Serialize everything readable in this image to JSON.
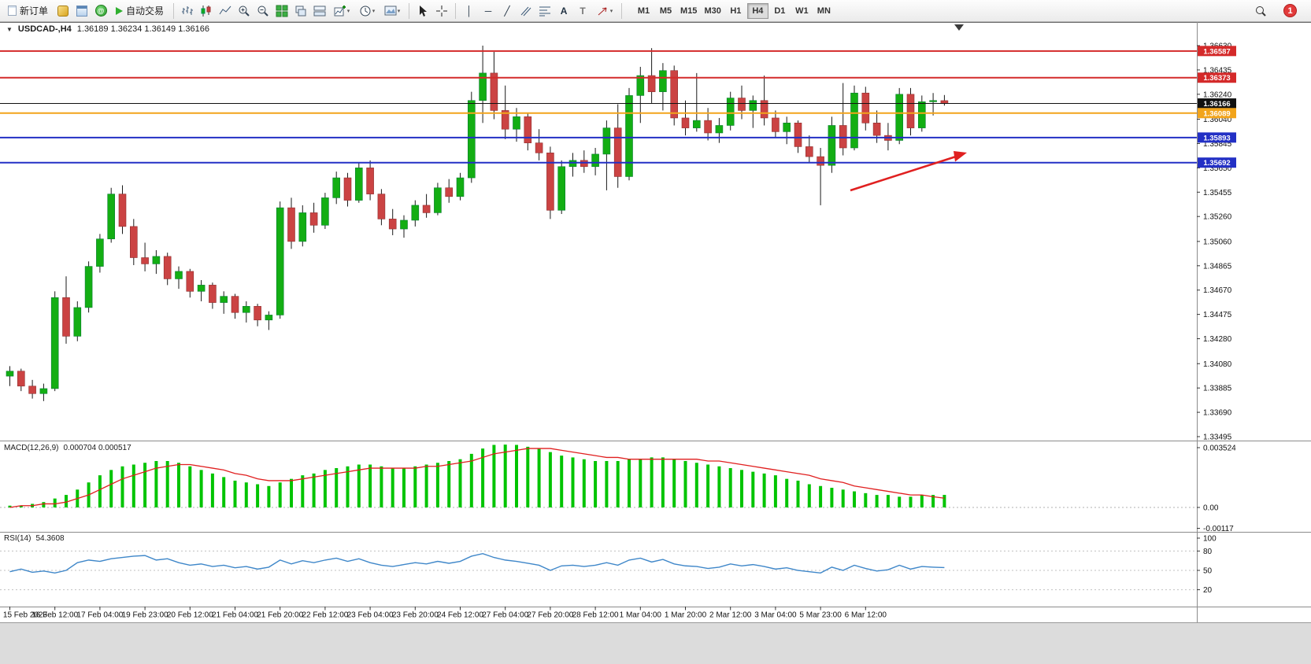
{
  "toolbar": {
    "new_order_label": "新订单",
    "auto_trading_label": "自动交易",
    "timeframes": [
      "M1",
      "M5",
      "M15",
      "M30",
      "H1",
      "H4",
      "D1",
      "W1",
      "MN"
    ],
    "active_timeframe": "H4",
    "notification_count": "1"
  },
  "chart": {
    "expander_icon": "▼",
    "symbol_header": "USDCAD-,H4",
    "ohlc_text": "1.36189 1.36234 1.36149 1.36166",
    "price_ticks": [
      "1.36630",
      "1.36435",
      "1.36240",
      "1.36040",
      "1.35845",
      "1.35650",
      "1.35455",
      "1.35260",
      "1.35060",
      "1.34865",
      "1.34670",
      "1.34475",
      "1.34280",
      "1.34080",
      "1.33885",
      "1.33690",
      "1.33495"
    ],
    "levels": [
      {
        "name": "resistance-1",
        "price": "1.36587",
        "color": "#d42a2a"
      },
      {
        "name": "resistance-2",
        "price": "1.36373",
        "color": "#d42a2a"
      },
      {
        "name": "current-price",
        "price": "1.36166",
        "color": "#111111"
      },
      {
        "name": "pivot",
        "price": "1.36089",
        "color": "#f2a41b"
      },
      {
        "name": "support-1",
        "price": "1.35893",
        "color": "#2330c5"
      },
      {
        "name": "support-2",
        "price": "1.35692",
        "color": "#2330c5"
      }
    ],
    "time_labels": [
      "15 Feb 2023",
      "16 Feb 12:00",
      "17 Feb 04:00",
      "19 Feb 23:00",
      "20 Feb 12:00",
      "21 Feb 04:00",
      "21 Feb 20:00",
      "22 Feb 12:00",
      "23 Feb 04:00",
      "23 Feb 20:00",
      "24 Feb 12:00",
      "27 Feb 04:00",
      "27 Feb 20:00",
      "28 Feb 12:00",
      "1 Mar 04:00",
      "1 Mar 20:00",
      "2 Mar 12:00",
      "3 Mar 04:00",
      "5 Mar 23:00",
      "6 Mar 12:00"
    ]
  },
  "macd": {
    "label": "MACD(12,26,9)",
    "values": "0.000704 0.000517",
    "ticks": [
      "0.003524",
      "0.00",
      "-0.00117"
    ]
  },
  "rsi": {
    "label": "RSI(14)",
    "values": "54.3608",
    "ticks": [
      "100",
      "80",
      "50",
      "20"
    ]
  },
  "chart_data": {
    "type": "candlestick",
    "symbol": "USDCAD-",
    "timeframe": "H4",
    "current": {
      "open": 1.36189,
      "high": 1.36234,
      "low": 1.36149,
      "close": 1.36166
    },
    "price_range": [
      1.33495,
      1.3663
    ],
    "colors": {
      "bull": "#13ae13",
      "bear": "#cb4343",
      "macd_hist": "#00c400",
      "macd_signal": "#e01f1f",
      "rsi": "#3f87c9",
      "arrow": "#e02020"
    },
    "candles": [
      [
        1.3398,
        1.3406,
        1.339,
        1.3402
      ],
      [
        1.3402,
        1.3404,
        1.3386,
        1.339
      ],
      [
        1.339,
        1.3395,
        1.338,
        1.3384
      ],
      [
        1.3384,
        1.3392,
        1.3378,
        1.3388
      ],
      [
        1.3388,
        1.3466,
        1.3386,
        1.3461
      ],
      [
        1.3461,
        1.3478,
        1.3424,
        1.343
      ],
      [
        1.343,
        1.3458,
        1.3426,
        1.3453
      ],
      [
        1.3453,
        1.349,
        1.3449,
        1.3486
      ],
      [
        1.3486,
        1.3512,
        1.3481,
        1.3508
      ],
      [
        1.3508,
        1.3549,
        1.3505,
        1.3544
      ],
      [
        1.3544,
        1.3551,
        1.3512,
        1.3518
      ],
      [
        1.3518,
        1.3524,
        1.3487,
        1.3493
      ],
      [
        1.3493,
        1.3505,
        1.3482,
        1.3488
      ],
      [
        1.3488,
        1.3499,
        1.348,
        1.3494
      ],
      [
        1.3494,
        1.3497,
        1.3471,
        1.3476
      ],
      [
        1.3476,
        1.3486,
        1.3468,
        1.3482
      ],
      [
        1.3482,
        1.3484,
        1.3461,
        1.3466
      ],
      [
        1.3466,
        1.3475,
        1.3458,
        1.3471
      ],
      [
        1.3471,
        1.3473,
        1.3452,
        1.3457
      ],
      [
        1.3457,
        1.3466,
        1.3448,
        1.3462
      ],
      [
        1.3462,
        1.3464,
        1.3444,
        1.3449
      ],
      [
        1.3449,
        1.3458,
        1.3441,
        1.3454
      ],
      [
        1.3454,
        1.3456,
        1.3438,
        1.3443
      ],
      [
        1.3443,
        1.345,
        1.3435,
        1.3447
      ],
      [
        1.3447,
        1.3538,
        1.3444,
        1.3533
      ],
      [
        1.3533,
        1.3541,
        1.35,
        1.3506
      ],
      [
        1.3506,
        1.3535,
        1.3502,
        1.3529
      ],
      [
        1.3529,
        1.3537,
        1.3513,
        1.3519
      ],
      [
        1.3519,
        1.3545,
        1.3516,
        1.3541
      ],
      [
        1.3541,
        1.3562,
        1.3536,
        1.3557
      ],
      [
        1.3557,
        1.3561,
        1.3534,
        1.3539
      ],
      [
        1.3539,
        1.3569,
        1.3537,
        1.3565
      ],
      [
        1.3565,
        1.3571,
        1.3539,
        1.3544
      ],
      [
        1.3544,
        1.3548,
        1.3519,
        1.3524
      ],
      [
        1.3524,
        1.3532,
        1.3511,
        1.3516
      ],
      [
        1.3516,
        1.3527,
        1.3509,
        1.3523
      ],
      [
        1.3523,
        1.3539,
        1.3518,
        1.3535
      ],
      [
        1.3535,
        1.3544,
        1.3525,
        1.3529
      ],
      [
        1.3529,
        1.3553,
        1.3527,
        1.3549
      ],
      [
        1.3549,
        1.3556,
        1.3537,
        1.3542
      ],
      [
        1.3542,
        1.3561,
        1.3539,
        1.3557
      ],
      [
        1.3557,
        1.3626,
        1.3553,
        1.3619
      ],
      [
        1.3619,
        1.3663,
        1.3601,
        1.3641
      ],
      [
        1.3641,
        1.3658,
        1.3604,
        1.3611
      ],
      [
        1.3611,
        1.3631,
        1.3588,
        1.3596
      ],
      [
        1.3596,
        1.3613,
        1.3586,
        1.3606
      ],
      [
        1.3606,
        1.3609,
        1.3579,
        1.3585
      ],
      [
        1.3585,
        1.3596,
        1.3571,
        1.3577
      ],
      [
        1.3577,
        1.3582,
        1.3524,
        1.3531
      ],
      [
        1.3531,
        1.3571,
        1.3528,
        1.3566
      ],
      [
        1.3566,
        1.3577,
        1.3558,
        1.3571
      ],
      [
        1.3571,
        1.3579,
        1.3561,
        1.3566
      ],
      [
        1.3566,
        1.3581,
        1.3559,
        1.3576
      ],
      [
        1.3576,
        1.3603,
        1.3547,
        1.3597
      ],
      [
        1.3597,
        1.3616,
        1.3549,
        1.3558
      ],
      [
        1.3558,
        1.3629,
        1.3555,
        1.3623
      ],
      [
        1.3623,
        1.3646,
        1.3601,
        1.3639
      ],
      [
        1.3639,
        1.3661,
        1.3617,
        1.3626
      ],
      [
        1.3626,
        1.3649,
        1.3611,
        1.3643
      ],
      [
        1.3643,
        1.3647,
        1.3599,
        1.3605
      ],
      [
        1.3605,
        1.3619,
        1.3591,
        1.3597
      ],
      [
        1.3597,
        1.3641,
        1.3594,
        1.3603
      ],
      [
        1.3603,
        1.3613,
        1.3587,
        1.3593
      ],
      [
        1.3593,
        1.3605,
        1.3585,
        1.3599
      ],
      [
        1.3599,
        1.3626,
        1.3595,
        1.3621
      ],
      [
        1.3621,
        1.3631,
        1.3604,
        1.3611
      ],
      [
        1.3611,
        1.3623,
        1.3597,
        1.3619
      ],
      [
        1.3619,
        1.3639,
        1.3599,
        1.3605
      ],
      [
        1.3605,
        1.3611,
        1.3589,
        1.3594
      ],
      [
        1.3594,
        1.3606,
        1.3584,
        1.3601
      ],
      [
        1.3601,
        1.3603,
        1.3577,
        1.3582
      ],
      [
        1.3582,
        1.3591,
        1.3569,
        1.3574
      ],
      [
        1.3574,
        1.3581,
        1.3535,
        1.3567
      ],
      [
        1.3567,
        1.3606,
        1.3561,
        1.3599
      ],
      [
        1.3599,
        1.3633,
        1.3575,
        1.3581
      ],
      [
        1.3581,
        1.3631,
        1.3579,
        1.3625
      ],
      [
        1.3625,
        1.363,
        1.3595,
        1.3601
      ],
      [
        1.3601,
        1.3611,
        1.3585,
        1.3591
      ],
      [
        1.3591,
        1.3601,
        1.3579,
        1.3587
      ],
      [
        1.3587,
        1.3629,
        1.3584,
        1.3624
      ],
      [
        1.3624,
        1.3629,
        1.3591,
        1.3597
      ],
      [
        1.3597,
        1.3623,
        1.3594,
        1.3618
      ],
      [
        1.3618,
        1.3625,
        1.3607,
        1.3619
      ],
      [
        1.36189,
        1.36234,
        1.36149,
        1.36166
      ]
    ],
    "macd_series": {
      "histogram": [
        0.0001,
        0.0001,
        0.0002,
        0.0003,
        0.0005,
        0.0007,
        0.001,
        0.0014,
        0.0018,
        0.0021,
        0.0023,
        0.0024,
        0.0025,
        0.0026,
        0.0026,
        0.0025,
        0.0023,
        0.0021,
        0.0019,
        0.0017,
        0.0015,
        0.0014,
        0.0013,
        0.0012,
        0.0014,
        0.0016,
        0.0018,
        0.0019,
        0.0021,
        0.0022,
        0.0023,
        0.0024,
        0.0024,
        0.0023,
        0.0022,
        0.0022,
        0.0023,
        0.0024,
        0.0025,
        0.0026,
        0.0027,
        0.003,
        0.0033,
        0.0035,
        0.00352,
        0.0035,
        0.0034,
        0.0033,
        0.0031,
        0.0029,
        0.0028,
        0.0027,
        0.0026,
        0.0026,
        0.0026,
        0.0027,
        0.0027,
        0.0028,
        0.0028,
        0.0027,
        0.0026,
        0.0025,
        0.0024,
        0.0023,
        0.0022,
        0.0021,
        0.002,
        0.0019,
        0.0018,
        0.0016,
        0.0015,
        0.0013,
        0.0012,
        0.0011,
        0.001,
        0.0009,
        0.0008,
        0.0007,
        0.0007,
        0.0006,
        0.0006,
        0.0007,
        0.0007,
        0.000704
      ],
      "signal": [
        0.0,
        0.0001,
        0.0001,
        0.0002,
        0.0002,
        0.0003,
        0.0005,
        0.0007,
        0.001,
        0.0013,
        0.0016,
        0.0018,
        0.002,
        0.0022,
        0.0023,
        0.0024,
        0.0024,
        0.0023,
        0.0022,
        0.0021,
        0.0019,
        0.0018,
        0.0016,
        0.0015,
        0.0015,
        0.0015,
        0.0016,
        0.0017,
        0.0018,
        0.0019,
        0.002,
        0.0021,
        0.0022,
        0.0022,
        0.0022,
        0.0022,
        0.0022,
        0.0023,
        0.0023,
        0.0024,
        0.0025,
        0.0026,
        0.0028,
        0.003,
        0.0031,
        0.0032,
        0.0033,
        0.0033,
        0.0033,
        0.0032,
        0.0031,
        0.003,
        0.0029,
        0.0028,
        0.0028,
        0.0027,
        0.0027,
        0.0027,
        0.0027,
        0.0027,
        0.0027,
        0.0027,
        0.0026,
        0.0026,
        0.0025,
        0.0024,
        0.0023,
        0.0022,
        0.0021,
        0.002,
        0.0019,
        0.0018,
        0.0016,
        0.0015,
        0.0014,
        0.0012,
        0.0011,
        0.001,
        0.0009,
        0.0008,
        0.0007,
        0.0007,
        0.0006,
        0.000517
      ]
    },
    "rsi_series": {
      "values": [
        48,
        52,
        47,
        49,
        46,
        50,
        62,
        66,
        64,
        68,
        70,
        72,
        73,
        66,
        68,
        62,
        58,
        60,
        56,
        58,
        54,
        56,
        52,
        55,
        66,
        60,
        65,
        62,
        66,
        69,
        64,
        68,
        62,
        58,
        56,
        59,
        62,
        60,
        64,
        61,
        64,
        72,
        76,
        70,
        66,
        64,
        61,
        58,
        50,
        57,
        58,
        56,
        58,
        62,
        58,
        66,
        69,
        63,
        67,
        60,
        57,
        56,
        53,
        55,
        60,
        57,
        59,
        56,
        52,
        54,
        50,
        48,
        46,
        55,
        50,
        58,
        53,
        49,
        51,
        58,
        52,
        56,
        55,
        54.36
      ],
      "levels": [
        80,
        50,
        20
      ]
    },
    "arrow": {
      "from": [
        1080,
        242
      ],
      "to": [
        1214,
        199
      ],
      "head": [
        [
          1228,
          194
        ],
        [
          1213,
          205.5
        ],
        [
          1211,
          192
        ]
      ]
    }
  }
}
